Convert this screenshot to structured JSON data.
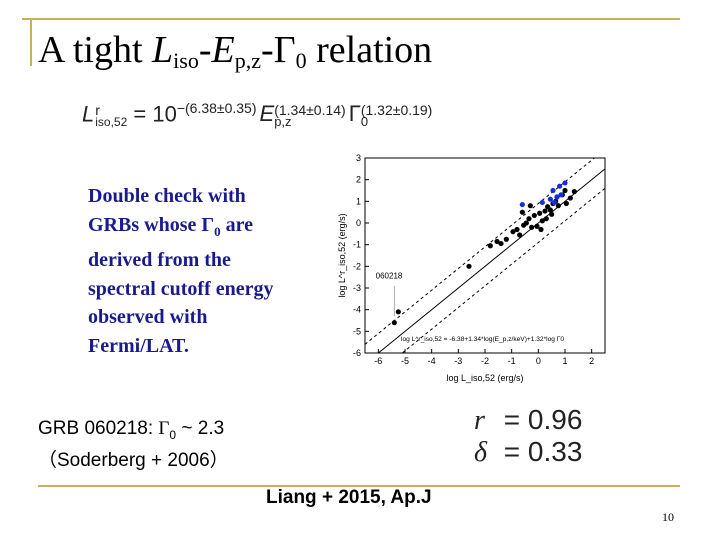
{
  "slide": {
    "title_prefix": "A tight ",
    "title_L": "L",
    "title_L_sub": "iso",
    "title_dash1": "-",
    "title_E": "E",
    "title_E_sub": "p,z",
    "title_dash2": "-",
    "title_Gamma": "Γ",
    "title_Gamma_sub": "0",
    "title_suffix": " relation",
    "page_number": "10"
  },
  "equation": {
    "lhs_symbol": "L",
    "lhs_sup": "r",
    "lhs_sub": "iso,52",
    "equals_ten": " = 10",
    "exponent_1": "−(6.38±0.35)",
    "e_symbol": "E",
    "e_sub": "p,z",
    "exponent_2": "(1.34±0.14)",
    "gamma_symbol": "Γ",
    "gamma_sub": "0",
    "exponent_3": "(1.32±0.19)"
  },
  "note": {
    "line_1": "Double check with",
    "line_2_pre": "GRBs whose ",
    "line_2_gamma": "Γ",
    "line_2_sub": "0",
    "line_2_post": " are",
    "line_3": "derived from the",
    "line_4": "spectral cutoff energy",
    "line_5": "observed with",
    "line_6": "Fermi/LAT."
  },
  "grb_note": {
    "line_1_pre": "GRB 060218: ",
    "line_1_gamma": "Γ",
    "line_1_sub": "0",
    "line_1_post": " ~ 2.3",
    "line_2": "（Soderberg + 2006）"
  },
  "stats": {
    "r_symbol": "r",
    "r_value": "= 0.96",
    "delta_symbol": "δ",
    "delta_value": "= 0.33"
  },
  "citation": "Liang + 2015, Ap.J",
  "chart_data": {
    "type": "scatter",
    "xlabel": "log L_iso,52 (erg/s)",
    "ylabel": "log L^r_iso,52 (erg/s)",
    "xlim": [
      -6.5,
      2.5
    ],
    "ylim": [
      -6,
      3
    ],
    "x_ticks": [
      -6,
      -5,
      -4,
      -3,
      -2,
      -1,
      0,
      1,
      2
    ],
    "y_ticks": [
      -6,
      -5,
      -4,
      -3,
      -2,
      -1,
      0,
      1,
      2,
      3
    ],
    "annotation": "060218",
    "fit_label": "log L^r_iso,52 = -6.38+1.34*log(E_p,z/keV)+1.32*log Γ0",
    "fit_line": [
      [
        -6.5,
        -6.5
      ],
      [
        2.5,
        2.5
      ]
    ],
    "band_offset": 0.9,
    "series": [
      {
        "color": "#000000",
        "x": [
          -5.4,
          -5.25,
          -2.6,
          -1.8,
          -1.55,
          -1.4,
          -1.2,
          -0.95,
          -0.8,
          -0.7,
          -0.55,
          -0.45,
          -0.35,
          -0.25,
          -0.15,
          -0.05,
          0.05,
          0.15,
          0.25,
          0.35,
          0.45,
          0.55,
          0.65,
          0.75,
          0.9,
          1.05,
          1.2,
          1.35,
          0.1,
          0.3,
          0.5,
          -0.6,
          -0.3,
          0.7,
          1.0
        ],
        "y": [
          -4.6,
          -4.1,
          -2.0,
          -1.05,
          -0.85,
          -0.95,
          -0.75,
          -0.4,
          -0.3,
          -0.55,
          -0.1,
          0.0,
          0.2,
          -0.2,
          0.35,
          -0.15,
          0.45,
          0.1,
          0.55,
          0.75,
          0.6,
          0.9,
          1.0,
          0.8,
          1.3,
          0.9,
          1.15,
          1.45,
          -0.3,
          0.2,
          0.4,
          0.5,
          0.8,
          1.2,
          1.5
        ]
      },
      {
        "color": "#1530d8",
        "x": [
          -0.6,
          0.15,
          0.55,
          0.7,
          0.8,
          1.0,
          0.6,
          0.85,
          0.45
        ],
        "y": [
          0.85,
          0.95,
          1.5,
          1.2,
          1.7,
          1.85,
          0.95,
          1.3,
          1.1
        ]
      }
    ]
  }
}
